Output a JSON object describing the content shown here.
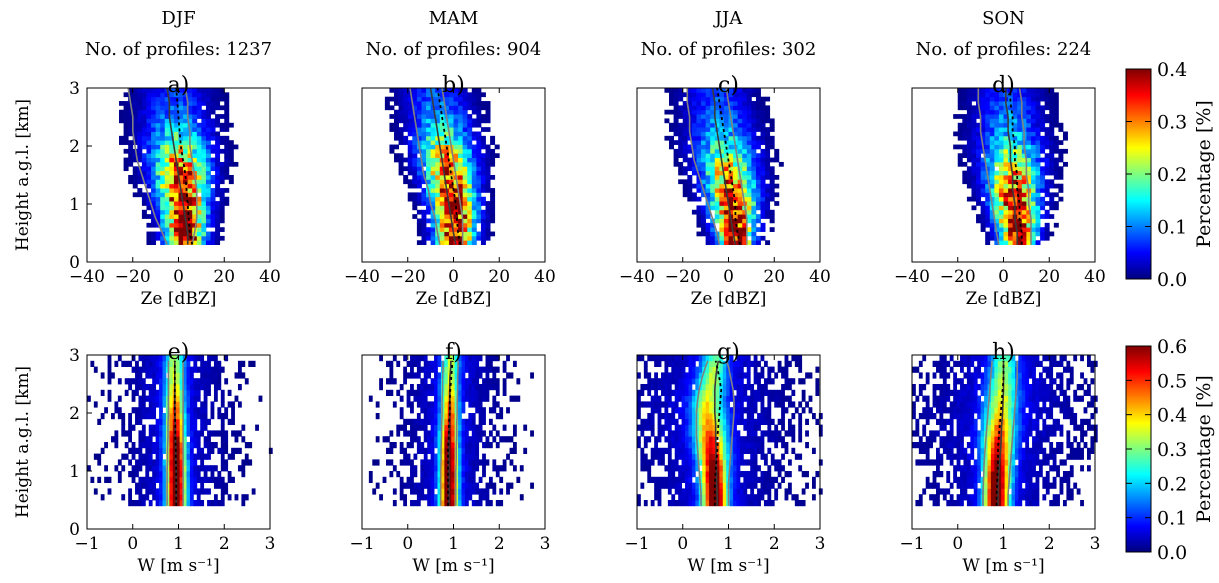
{
  "figure": {
    "row_ylabel": "Height a.g.l. [km]",
    "colorbars": [
      {
        "label": "Percentage [%]",
        "ticks": [
          "0.0",
          "0.1",
          "0.2",
          "0.3",
          "0.4"
        ]
      },
      {
        "label": "Percentage [%]",
        "ticks": [
          "0.0",
          "0.1",
          "0.2",
          "0.3",
          "0.4",
          "0.5",
          "0.6"
        ]
      }
    ],
    "colormap": [
      "#00007f",
      "#0000ff",
      "#007fff",
      "#00ffff",
      "#7fff7f",
      "#ffff00",
      "#ff7f00",
      "#ff0000",
      "#7f0000"
    ],
    "line_colors": {
      "mean": "#3a3a3a",
      "median": "#000000",
      "quartiles": "#808080"
    }
  },
  "chart_data": [
    {
      "type": "heatmap",
      "panel": "a)",
      "season": "DJF",
      "subtitle": "No. of profiles: 1237",
      "xlabel": "Ze [dBZ]",
      "ylabel": "Height a.g.l. [km]",
      "xlim": [
        -40,
        40
      ],
      "ylim": [
        0,
        3
      ],
      "xticks": [
        "−40",
        "−20",
        "0",
        "20",
        "40"
      ],
      "yticks": [
        "0",
        "1",
        "2",
        "3"
      ],
      "heights": [
        0.3,
        0.5,
        0.75,
        1.0,
        1.25,
        1.5,
        1.75,
        2.0,
        2.25,
        2.5,
        2.75,
        3.0
      ],
      "center": [
        3,
        3,
        2.5,
        2,
        1.5,
        1,
        0.5,
        0,
        -0.5,
        -1,
        -1.5,
        -2
      ],
      "width": [
        9,
        9.5,
        10,
        11,
        12,
        13,
        14,
        15,
        15.5,
        16,
        16,
        16
      ],
      "peak": [
        0.4,
        0.4,
        0.4,
        0.4,
        0.38,
        0.34,
        0.28,
        0.2,
        0.14,
        0.1,
        0.08,
        0.06
      ],
      "median": [
        6,
        5,
        4.5,
        4,
        3.5,
        3,
        2,
        1,
        0.5,
        0,
        -0.5,
        -1
      ],
      "mean": [
        4,
        4,
        3,
        2,
        1,
        0,
        -1,
        -2,
        -3,
        -4,
        -4,
        -5
      ],
      "q1": [
        -5,
        -7,
        -10,
        -12,
        -14,
        -16,
        -18,
        -19,
        -20,
        -20,
        -21,
        -22
      ],
      "q3": [
        6,
        7,
        8,
        8,
        8,
        7,
        6,
        5,
        5,
        4,
        4,
        3
      ]
    },
    {
      "type": "heatmap",
      "panel": "b)",
      "season": "MAM",
      "subtitle": "No. of profiles: 904",
      "xlabel": "Ze [dBZ]",
      "ylabel": "",
      "xlim": [
        -40,
        40
      ],
      "ylim": [
        0,
        3
      ],
      "xticks": [
        "−40",
        "−20",
        "0",
        "20",
        "40"
      ],
      "yticks": [],
      "heights": [
        0.3,
        0.5,
        0.75,
        1.0,
        1.25,
        1.5,
        1.75,
        2.0,
        2.25,
        2.5,
        2.75,
        3.0
      ],
      "center": [
        1,
        1,
        0.5,
        0,
        -1,
        -2,
        -3,
        -4,
        -5,
        -6,
        -7,
        -8
      ],
      "width": [
        9,
        9.5,
        10,
        10.5,
        11,
        12,
        13,
        14,
        14,
        14.5,
        15,
        15
      ],
      "peak": [
        0.4,
        0.4,
        0.4,
        0.4,
        0.38,
        0.34,
        0.28,
        0.22,
        0.16,
        0.12,
        0.09,
        0.07
      ],
      "median": [
        3,
        2,
        1.5,
        1,
        0,
        -1,
        -2,
        -3,
        -4,
        -5,
        -6,
        -7
      ],
      "mean": [
        1,
        0,
        -1,
        -2,
        -3,
        -4,
        -5,
        -6,
        -7,
        -8,
        -9,
        -10
      ],
      "q1": [
        -6,
        -7,
        -8,
        -10,
        -11,
        -13,
        -14,
        -15,
        -16,
        -17,
        -18,
        -19
      ],
      "q3": [
        4,
        4,
        4,
        3,
        2,
        1,
        0,
        -1,
        -2,
        -3,
        -4,
        -5
      ]
    },
    {
      "type": "heatmap",
      "panel": "c)",
      "season": "JJA",
      "subtitle": "No. of profiles: 302",
      "xlabel": "Ze [dBZ]",
      "ylabel": "",
      "xlim": [
        -40,
        40
      ],
      "ylim": [
        0,
        3
      ],
      "xticks": [
        "−40",
        "−20",
        "0",
        "20",
        "40"
      ],
      "yticks": [],
      "heights": [
        0.3,
        0.5,
        0.75,
        1.0,
        1.25,
        1.5,
        1.75,
        2.0,
        2.25,
        2.5,
        2.75,
        3.0
      ],
      "center": [
        3,
        3,
        2.5,
        2,
        1,
        0,
        -1,
        -2,
        -3,
        -4,
        -5,
        -6
      ],
      "width": [
        8,
        9,
        10,
        11,
        12,
        13,
        14,
        15,
        15,
        15,
        15,
        15
      ],
      "peak": [
        0.4,
        0.4,
        0.4,
        0.38,
        0.34,
        0.28,
        0.22,
        0.16,
        0.12,
        0.1,
        0.08,
        0.07
      ],
      "median": [
        5,
        4,
        3,
        3,
        2,
        1,
        0,
        -1,
        -2,
        -3,
        -4,
        -5
      ],
      "mean": [
        3,
        2,
        1,
        0,
        -1,
        -2,
        -3,
        -4,
        -5,
        -6,
        -6,
        -7
      ],
      "q1": [
        -4,
        -5,
        -7,
        -9,
        -11,
        -13,
        -15,
        -16,
        -17,
        -17,
        -18,
        -18
      ],
      "q3": [
        8,
        8,
        8,
        7,
        6,
        5,
        4,
        3,
        2,
        1,
        0,
        -1
      ]
    },
    {
      "type": "heatmap",
      "panel": "d)",
      "season": "SON",
      "subtitle": "No. of profiles: 224",
      "xlabel": "Ze [dBZ]",
      "ylabel": "",
      "xlim": [
        -40,
        40
      ],
      "ylim": [
        0,
        3
      ],
      "xticks": [
        "−40",
        "−20",
        "0",
        "20",
        "40"
      ],
      "yticks": [],
      "heights": [
        0.3,
        0.5,
        0.75,
        1.0,
        1.25,
        1.5,
        1.75,
        2.0,
        2.25,
        2.5,
        2.75,
        3.0
      ],
      "center": [
        6,
        6,
        5.5,
        5,
        4.5,
        4,
        3.5,
        3,
        2.5,
        2,
        1.5,
        1
      ],
      "width": [
        8,
        9,
        10,
        11,
        12,
        13,
        14,
        15,
        15,
        15,
        15,
        15
      ],
      "peak": [
        0.4,
        0.4,
        0.4,
        0.38,
        0.34,
        0.28,
        0.22,
        0.16,
        0.12,
        0.1,
        0.08,
        0.07
      ],
      "median": [
        8,
        8,
        7,
        7,
        6,
        6,
        5,
        5,
        4,
        4,
        3,
        3
      ],
      "mean": [
        6,
        6,
        5,
        5,
        4,
        4,
        3,
        3,
        2,
        2,
        1,
        1
      ],
      "q1": [
        -2,
        -3,
        -4,
        -5,
        -6,
        -7,
        -8,
        -9,
        -10,
        -10,
        -11,
        -11
      ],
      "q3": [
        12,
        12,
        12,
        11,
        11,
        10,
        10,
        9,
        9,
        8,
        8,
        7
      ]
    },
    {
      "type": "heatmap",
      "panel": "e)",
      "xlabel": "W [m s⁻¹]",
      "ylabel": "Height a.g.l. [km]",
      "xlim": [
        -1,
        3
      ],
      "ylim": [
        0,
        3
      ],
      "xticks": [
        "−1",
        "0",
        "1",
        "2",
        "3"
      ],
      "yticks": [
        "0",
        "1",
        "2",
        "3"
      ],
      "heights": [
        0.4,
        0.6,
        0.8,
        1.0,
        1.2,
        1.4,
        1.6,
        1.8,
        2.0,
        2.2,
        2.4,
        2.6,
        2.8,
        2.9
      ],
      "center": [
        0.95,
        0.95,
        0.95,
        0.95,
        0.94,
        0.94,
        0.93,
        0.93,
        0.92,
        0.92,
        0.92,
        0.92,
        0.92,
        0.92
      ],
      "width": [
        0.22,
        0.22,
        0.22,
        0.22,
        0.22,
        0.22,
        0.22,
        0.22,
        0.22,
        0.22,
        0.22,
        0.22,
        0.22,
        0.22
      ],
      "peak": [
        0.6,
        0.6,
        0.6,
        0.6,
        0.58,
        0.55,
        0.5,
        0.45,
        0.4,
        0.35,
        0.3,
        0.28,
        0.25,
        0.25
      ],
      "median": [
        0.95,
        0.95,
        0.95,
        0.95,
        0.94,
        0.94,
        0.93,
        0.93,
        0.92,
        0.92,
        0.92,
        0.92,
        0.92,
        0.92
      ],
      "mean": [
        0.95,
        0.95,
        0.95,
        0.95,
        0.94,
        0.94,
        0.93,
        0.93,
        0.92,
        0.92,
        0.92,
        0.92,
        0.92,
        0.92
      ],
      "q1": [
        0.75,
        0.75,
        0.75,
        0.75,
        0.76,
        0.76,
        0.77,
        0.77,
        0.78,
        0.78,
        0.78,
        0.78,
        0.78,
        0.78
      ],
      "q3": [
        1.1,
        1.1,
        1.1,
        1.1,
        1.1,
        1.1,
        1.1,
        1.1,
        1.1,
        1.1,
        1.1,
        1.1,
        1.1,
        1.1
      ]
    },
    {
      "type": "heatmap",
      "panel": "f)",
      "xlabel": "W [m s⁻¹]",
      "ylabel": "",
      "xlim": [
        -1,
        3
      ],
      "ylim": [
        0,
        3
      ],
      "xticks": [
        "−1",
        "0",
        "1",
        "2",
        "3"
      ],
      "yticks": [],
      "heights": [
        0.4,
        0.6,
        0.8,
        1.0,
        1.2,
        1.4,
        1.6,
        1.8,
        2.0,
        2.2,
        2.4,
        2.6,
        2.8,
        2.9
      ],
      "center": [
        0.9,
        0.9,
        0.9,
        0.9,
        0.9,
        0.9,
        0.9,
        0.92,
        0.92,
        0.92,
        0.92,
        0.92,
        0.94,
        0.94
      ],
      "width": [
        0.2,
        0.2,
        0.2,
        0.2,
        0.2,
        0.2,
        0.2,
        0.2,
        0.2,
        0.2,
        0.2,
        0.2,
        0.2,
        0.2
      ],
      "peak": [
        0.6,
        0.6,
        0.6,
        0.6,
        0.58,
        0.55,
        0.5,
        0.45,
        0.4,
        0.35,
        0.3,
        0.28,
        0.25,
        0.25
      ],
      "median": [
        0.88,
        0.88,
        0.88,
        0.88,
        0.88,
        0.88,
        0.9,
        0.9,
        0.92,
        0.92,
        0.93,
        0.95,
        0.97,
        0.98
      ],
      "mean": [
        0.9,
        0.9,
        0.9,
        0.9,
        0.9,
        0.9,
        0.9,
        0.92,
        0.92,
        0.92,
        0.92,
        0.92,
        0.94,
        0.94
      ],
      "q1": [
        0.72,
        0.72,
        0.72,
        0.72,
        0.73,
        0.73,
        0.74,
        0.74,
        0.75,
        0.75,
        0.76,
        0.76,
        0.77,
        0.77
      ],
      "q3": [
        1.05,
        1.05,
        1.05,
        1.05,
        1.06,
        1.06,
        1.07,
        1.07,
        1.08,
        1.08,
        1.09,
        1.09,
        1.1,
        1.1
      ]
    },
    {
      "type": "heatmap",
      "panel": "g)",
      "xlabel": "W [m s⁻¹]",
      "ylabel": "",
      "xlim": [
        -1,
        3
      ],
      "ylim": [
        0,
        3
      ],
      "xticks": [
        "−1",
        "0",
        "1",
        "2",
        "3"
      ],
      "yticks": [],
      "heights": [
        0.4,
        0.6,
        0.8,
        1.0,
        1.2,
        1.4,
        1.6,
        1.8,
        2.0,
        2.2,
        2.4,
        2.6,
        2.8,
        2.9
      ],
      "center": [
        0.7,
        0.7,
        0.68,
        0.68,
        0.65,
        0.63,
        0.6,
        0.58,
        0.55,
        0.55,
        0.6,
        0.65,
        0.7,
        0.7
      ],
      "width": [
        0.28,
        0.28,
        0.3,
        0.3,
        0.32,
        0.34,
        0.36,
        0.36,
        0.36,
        0.36,
        0.34,
        0.32,
        0.3,
        0.3
      ],
      "peak": [
        0.6,
        0.6,
        0.58,
        0.55,
        0.5,
        0.45,
        0.4,
        0.35,
        0.3,
        0.28,
        0.26,
        0.24,
        0.22,
        0.2
      ],
      "median": [
        0.7,
        0.7,
        0.7,
        0.72,
        0.74,
        0.76,
        0.76,
        0.78,
        0.8,
        0.82,
        0.84,
        0.8,
        0.75,
        0.72
      ],
      "mean": [
        0.75,
        0.75,
        0.74,
        0.74,
        0.73,
        0.73,
        0.72,
        0.72,
        0.7,
        0.7,
        0.7,
        0.72,
        0.75,
        0.78
      ],
      "q1": [
        0.4,
        0.4,
        0.38,
        0.36,
        0.34,
        0.32,
        0.3,
        0.3,
        0.3,
        0.32,
        0.36,
        0.42,
        0.5,
        0.55
      ],
      "q3": [
        1.0,
        1.0,
        1.0,
        1.02,
        1.04,
        1.06,
        1.08,
        1.1,
        1.12,
        1.12,
        1.1,
        1.05,
        1.0,
        0.95
      ]
    },
    {
      "type": "heatmap",
      "panel": "h)",
      "xlabel": "W [m s⁻¹]",
      "ylabel": "",
      "xlim": [
        -1,
        3
      ],
      "ylim": [
        0,
        3
      ],
      "xticks": [
        "−1",
        "0",
        "1",
        "2",
        "3"
      ],
      "yticks": [],
      "heights": [
        0.4,
        0.6,
        0.8,
        1.0,
        1.2,
        1.4,
        1.6,
        1.8,
        2.0,
        2.2,
        2.4,
        2.6,
        2.8,
        2.9
      ],
      "center": [
        0.85,
        0.85,
        0.86,
        0.87,
        0.88,
        0.88,
        0.9,
        0.92,
        0.94,
        0.96,
        0.98,
        1.0,
        1.0,
        1.0
      ],
      "width": [
        0.28,
        0.28,
        0.3,
        0.3,
        0.32,
        0.34,
        0.36,
        0.36,
        0.36,
        0.36,
        0.34,
        0.32,
        0.3,
        0.3
      ],
      "peak": [
        0.6,
        0.6,
        0.58,
        0.55,
        0.5,
        0.45,
        0.4,
        0.35,
        0.3,
        0.28,
        0.26,
        0.24,
        0.22,
        0.2
      ],
      "median": [
        0.85,
        0.85,
        0.86,
        0.87,
        0.88,
        0.88,
        0.9,
        0.92,
        0.94,
        0.96,
        0.98,
        1.0,
        1.0,
        1.0
      ],
      "mean": [
        0.88,
        0.88,
        0.88,
        0.9,
        0.92,
        0.94,
        0.95,
        0.96,
        0.98,
        0.99,
        1.0,
        1.0,
        1.0,
        1.0
      ],
      "q1": [
        0.55,
        0.55,
        0.56,
        0.57,
        0.58,
        0.6,
        0.62,
        0.64,
        0.66,
        0.68,
        0.7,
        0.72,
        0.74,
        0.75
      ],
      "q3": [
        1.1,
        1.1,
        1.12,
        1.14,
        1.16,
        1.18,
        1.2,
        1.22,
        1.24,
        1.26,
        1.28,
        1.3,
        1.3,
        1.3
      ]
    }
  ]
}
